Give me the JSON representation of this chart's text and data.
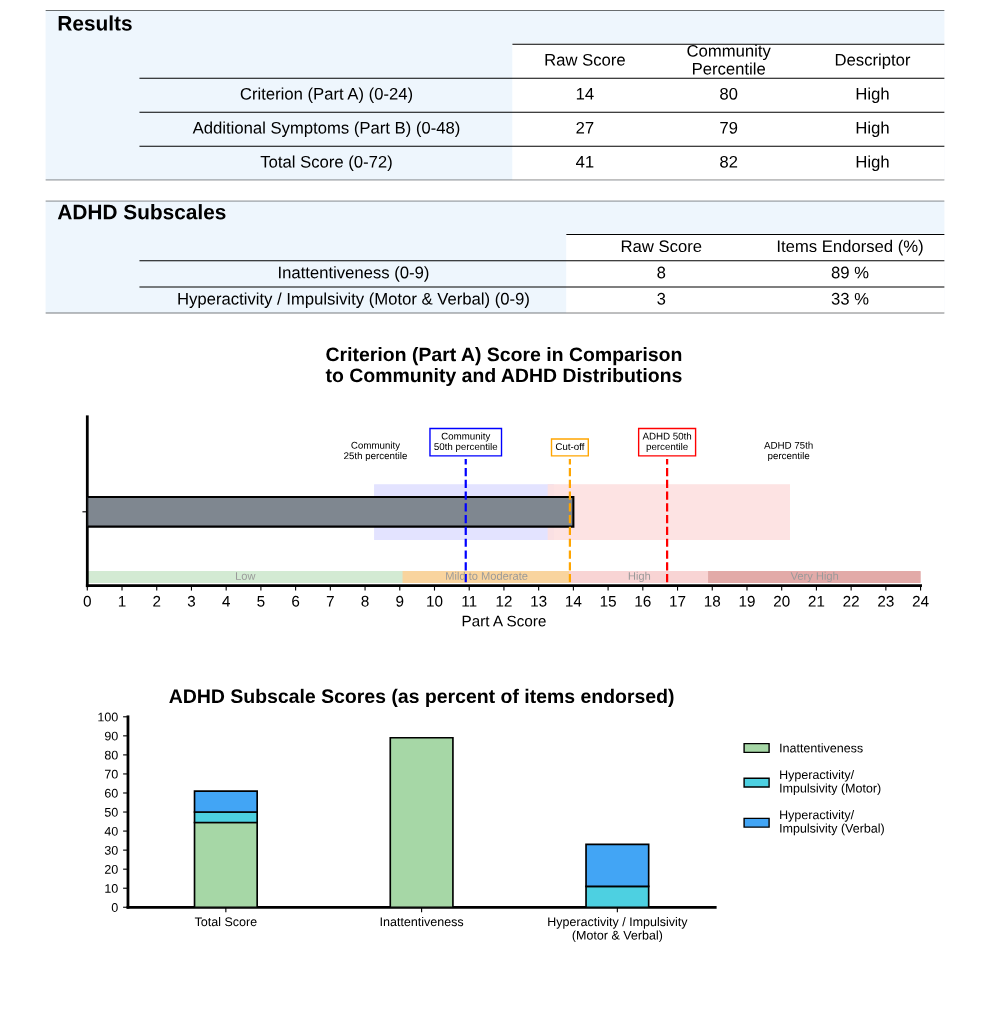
{
  "chart_data": [
    {
      "type": "other",
      "title": "Results",
      "categories": [
        "Raw Score",
        "Community\nPercentile",
        "Descriptor"
      ],
      "y_categories": [
        "Criterion (Part A) (0-24)",
        "Additional Symptoms (Part B) (0-48)",
        "Total Score (0-72)"
      ],
      "cell_labels": [
        [
          "14",
          "80",
          "High"
        ],
        [
          "27",
          "79",
          "High"
        ],
        [
          "41",
          "82",
          "High"
        ]
      ]
    },
    {
      "type": "other",
      "title": "ADHD Subscales",
      "categories": [
        "Raw Score",
        "Items Endorsed (%)"
      ],
      "y_categories": [
        "Inattentiveness (0-9)",
        "Hyperactivity / Impulsivity (Motor & Verbal) (0-9)"
      ],
      "cell_labels": [
        [
          "8",
          "89 %"
        ],
        [
          "3",
          "33 %"
        ]
      ]
    },
    {
      "type": "bar",
      "orientation": "horizontal",
      "title": "Criterion (Part A) Score in Comparison\nto Community and ADHD Distributions",
      "xlabel": "Part A Score",
      "categories": [
        null
      ],
      "values": [
        14
      ],
      "color": "#7f8790",
      "xlim": [
        0,
        24
      ],
      "xticks": [
        0,
        1,
        2,
        3,
        4,
        5,
        6,
        7,
        8,
        9,
        10,
        11,
        12,
        13,
        14,
        15,
        16,
        17,
        18,
        19,
        20,
        21,
        22,
        23,
        24
      ],
      "tick_labels": "x",
      "grid": false,
      "legend": false,
      "ref_lines": [
        {
          "axis": "x",
          "value": 10.9,
          "label": "Community\n50th percentile",
          "color": "#0000ff",
          "line_style": "dashed"
        },
        {
          "axis": "x",
          "value": 13.9,
          "label": "Cut-off",
          "color": "#ffa500",
          "line_style": "dashed"
        },
        {
          "axis": "x",
          "value": 16.7,
          "label": "ADHD 50th\npercentile",
          "color": "#ff0000",
          "line_style": "dashed"
        }
      ],
      "bands": [
        {
          "axis": "x",
          "from": 8.3,
          "to": 13.4,
          "color": "#e0e0ff"
        },
        {
          "axis": "x",
          "from": 13.3,
          "to": 20.2,
          "color": "#fde0e0"
        },
        {
          "axis": "x",
          "from": 0,
          "to": 9.1,
          "label": "Low",
          "color": "#d3ead3"
        },
        {
          "axis": "x",
          "from": 9.1,
          "to": 13.9,
          "label": "Mild to Moderate",
          "color": "#f9d49e"
        },
        {
          "axis": "x",
          "from": 13.9,
          "to": 17.9,
          "label": "High",
          "color": "#f8d4d4"
        },
        {
          "axis": "x",
          "from": 17.9,
          "to": 24,
          "label": "Very High",
          "color": "#e2aaa8"
        }
      ],
      "annotations": [
        "Community\n25th percentile",
        "ADHD 75th\npercentile"
      ]
    },
    {
      "type": "bar",
      "stacked": true,
      "title": "ADHD Subscale Scores (as percent of items endorsed)",
      "categories": [
        "Total Score",
        "Inattentiveness",
        "Hyperactivity / Impulsivity\n(Motor & Verbal)"
      ],
      "series": [
        {
          "name": "Inattentiveness",
          "color": "#a6d7a6",
          "values": [
            44.5,
            89,
            null
          ]
        },
        {
          "name": "Hyperactivity/\nImpulsivity (Motor)",
          "color": "#4dd0e1",
          "values": [
            5.5,
            null,
            11
          ]
        },
        {
          "name": "Hyperactivity/\nImpulsivity (Verbal)",
          "color": "#42a5f5",
          "values": [
            11,
            null,
            22
          ]
        }
      ],
      "ylim": [
        0,
        100
      ],
      "yticks": [
        0,
        10,
        20,
        30,
        40,
        50,
        60,
        70,
        80,
        90,
        100
      ],
      "grid": false,
      "legend": "right"
    }
  ]
}
